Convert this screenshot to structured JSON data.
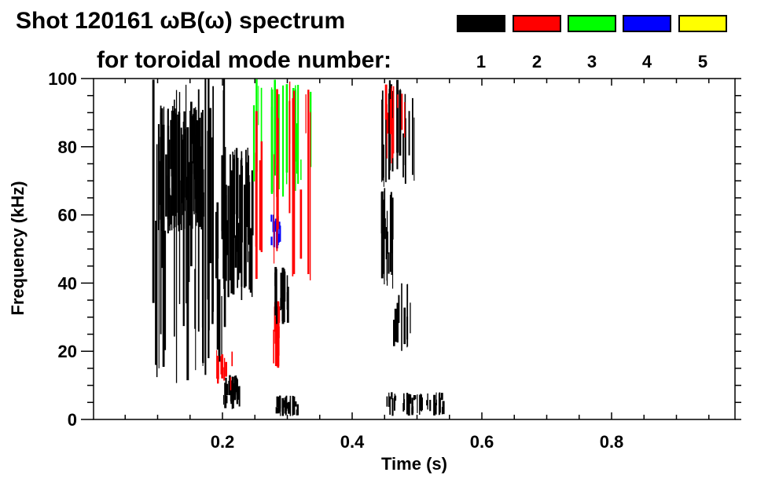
{
  "chart_data": {
    "type": "heatmap",
    "title_line1": "Shot 120161 ωB(ω) spectrum",
    "title_line2": "for toroidal mode number:",
    "xlabel": "Time (s)",
    "ylabel": "Frequency (kHz)",
    "xlim": [
      0,
      1.0
    ],
    "ylim": [
      0,
      100
    ],
    "xticks": [
      {
        "value": 0.2,
        "label": "0.2"
      },
      {
        "value": 0.4,
        "label": "0.4"
      },
      {
        "value": 0.6,
        "label": "0.6"
      },
      {
        "value": 0.8,
        "label": "0.8"
      }
    ],
    "yticks": [
      {
        "value": 0,
        "label": "0"
      },
      {
        "value": 20,
        "label": "20"
      },
      {
        "value": 40,
        "label": "40"
      },
      {
        "value": 60,
        "label": "60"
      },
      {
        "value": 80,
        "label": "80"
      },
      {
        "value": 100,
        "label": "100"
      }
    ],
    "legend": [
      {
        "mode": "1",
        "color": "#000000"
      },
      {
        "mode": "2",
        "color": "#ff0000"
      },
      {
        "mode": "3",
        "color": "#00ff00"
      },
      {
        "mode": "4",
        "color": "#0000ff"
      },
      {
        "mode": "5",
        "color": "#ffff00"
      }
    ],
    "regions": [
      {
        "t": [
          0.1,
          0.17
        ],
        "f": [
          55,
          92
        ],
        "mode": 1,
        "density": 0.85
      },
      {
        "t": [
          0.09,
          0.2
        ],
        "f": [
          10,
          100
        ],
        "mode": 1,
        "density": 0.25
      },
      {
        "t": [
          0.198,
          0.203
        ],
        "f": [
          15,
          100
        ],
        "mode": 1,
        "density": 1.0
      },
      {
        "t": [
          0.2,
          0.245
        ],
        "f": [
          35,
          80
        ],
        "mode": 1,
        "density": 0.7
      },
      {
        "t": [
          0.2,
          0.225
        ],
        "f": [
          3,
          13
        ],
        "mode": 1,
        "density": 0.85
      },
      {
        "t": [
          0.277,
          0.29
        ],
        "f": [
          15,
          35
        ],
        "mode": 2,
        "density": 0.8
      },
      {
        "t": [
          0.28,
          0.3
        ],
        "f": [
          28,
          45
        ],
        "mode": 1,
        "density": 0.7
      },
      {
        "t": [
          0.28,
          0.315
        ],
        "f": [
          1,
          7
        ],
        "mode": 1,
        "density": 0.6
      },
      {
        "t": [
          0.274,
          0.288
        ],
        "f": [
          50,
          61
        ],
        "mode": 4,
        "density": 0.6
      },
      {
        "t": [
          0.245,
          0.335
        ],
        "f": [
          65,
          100
        ],
        "mode": 3,
        "density": 0.2
      },
      {
        "t": [
          0.25,
          0.335
        ],
        "f": [
          40,
          100
        ],
        "mode": 2,
        "density": 0.15
      },
      {
        "t": [
          0.19,
          0.215
        ],
        "f": [
          8,
          22
        ],
        "mode": 2,
        "density": 0.35
      },
      {
        "t": [
          0.444,
          0.462
        ],
        "f": [
          38,
          68
        ],
        "mode": 1,
        "density": 0.85
      },
      {
        "t": [
          0.44,
          0.495
        ],
        "f": [
          68,
          100
        ],
        "mode": 1,
        "density": 0.3
      },
      {
        "t": [
          0.448,
          0.49
        ],
        "f": [
          75,
          100
        ],
        "mode": 2,
        "density": 0.2
      },
      {
        "t": [
          0.45,
          0.54
        ],
        "f": [
          1,
          8
        ],
        "mode": 1,
        "density": 0.35
      },
      {
        "t": [
          0.46,
          0.49
        ],
        "f": [
          20,
          40
        ],
        "mode": 1,
        "density": 0.25
      }
    ]
  }
}
